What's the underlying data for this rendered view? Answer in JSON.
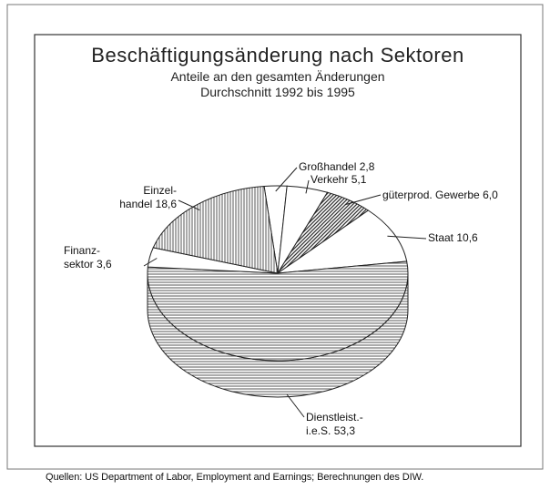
{
  "chart_data": {
    "type": "pie",
    "title": "Beschäftigungsänderung nach Sektoren",
    "subtitle": "Anteile an den gesamten Änderungen\nDurchschnitt 1992 bis 1995",
    "categories": [
      "Großhandel",
      "Verkehr",
      "güterprod. Gewerbe",
      "Staat",
      "Dienstleist.-\ni.e.S.",
      "Finanz-\nsektor",
      "Einzel-\nhandel"
    ],
    "values": [
      2.8,
      5.1,
      6.0,
      10.6,
      53.3,
      3.6,
      18.6
    ],
    "value_labels": [
      "2,8",
      "5,1",
      "6,0",
      "10,6",
      "53,3",
      "3,6",
      "18,6"
    ],
    "colors": [
      "#ffffff",
      "#ffffff",
      "#555555",
      "#ffffff",
      "#444444",
      "#ffffff",
      "#444444"
    ],
    "patterns": [
      "none",
      "none",
      "diagonal",
      "none",
      "horizontal",
      "none",
      "vertical"
    ],
    "source": "Quellen: US Department of Labor, Employment and Earnings; Berechnungen des DIW."
  }
}
